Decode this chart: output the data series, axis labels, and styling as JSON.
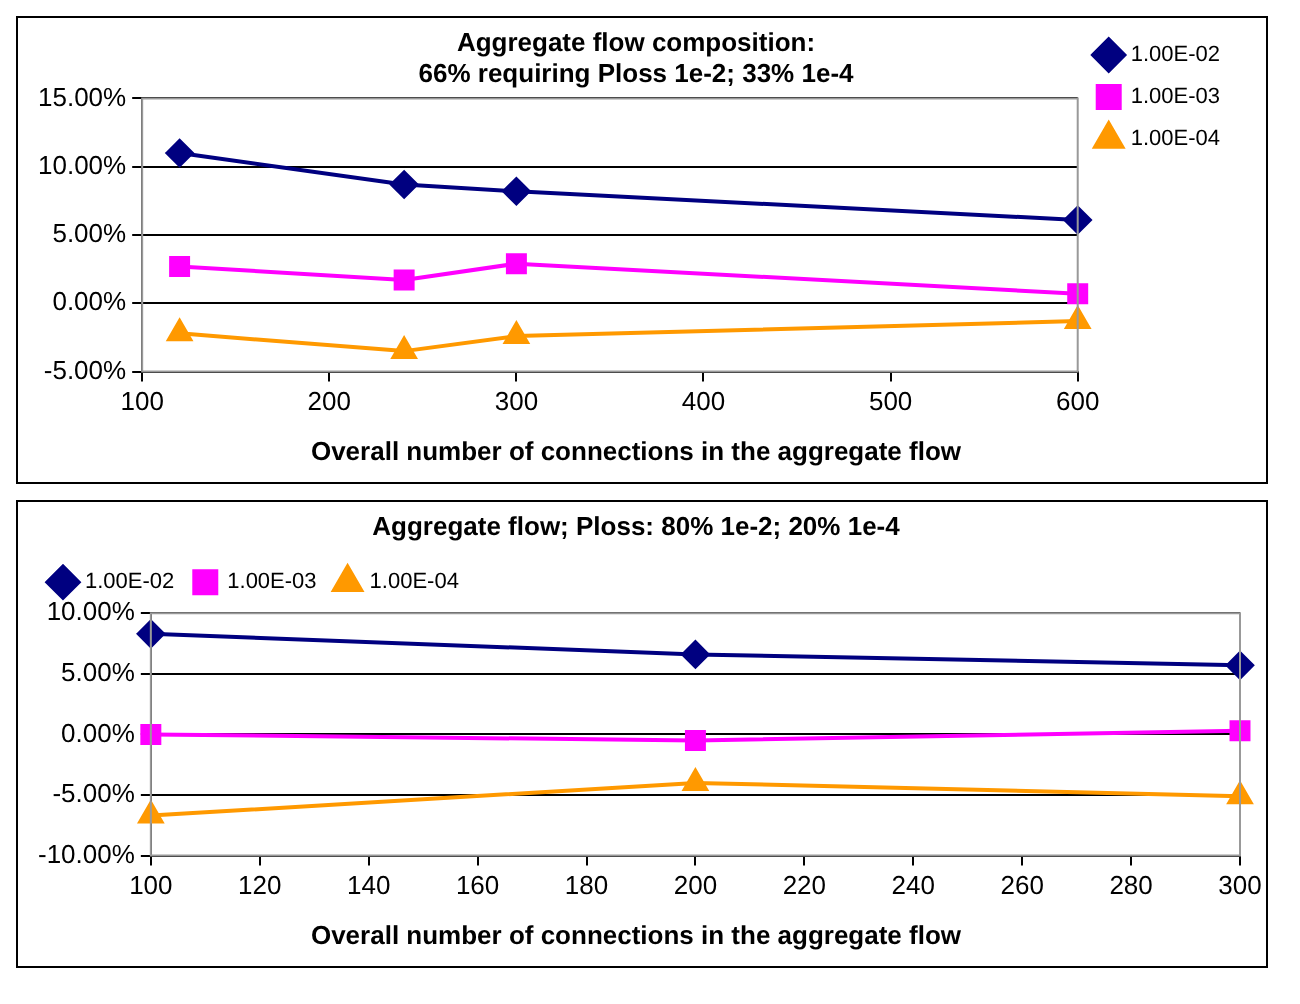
{
  "chart_data": [
    {
      "type": "line",
      "title": [
        "Aggregate flow composition:",
        "66% requiring Ploss 1e-2; 33% 1e-4"
      ],
      "xlabel": "Overall number of connections in the aggregate flow",
      "x": [
        120,
        240,
        300,
        600
      ],
      "series": [
        {
          "name": "1.00E-02",
          "color": "#000080",
          "marker": "diamond",
          "values": [
            11.0,
            8.7,
            8.2,
            6.1
          ]
        },
        {
          "name": "1.00E-03",
          "color": "#ff00ff",
          "marker": "square",
          "values": [
            2.7,
            1.7,
            2.9,
            0.7
          ]
        },
        {
          "name": "1.00E-04",
          "color": "#ff9900",
          "marker": "triangle",
          "values": [
            -2.2,
            -3.5,
            -2.4,
            -1.3
          ]
        }
      ],
      "xlim": [
        100,
        600
      ],
      "xticks": [
        100,
        200,
        300,
        400,
        500,
        600
      ],
      "ylim": [
        -5,
        15
      ],
      "yticks": [
        {
          "value": -5,
          "label": "-5.00%"
        },
        {
          "value": 0,
          "label": "0.00%"
        },
        {
          "value": 5,
          "label": "5.00%"
        },
        {
          "value": 10,
          "label": "10.00%"
        },
        {
          "value": 15,
          "label": "15.00%"
        }
      ],
      "grid": "y",
      "legend": "top right",
      "line_style": "solid"
    },
    {
      "type": "line",
      "title": "Aggregate flow; Ploss: 80% 1e-2; 20% 1e-4",
      "xlabel": "Overall number of connections in the aggregate flow",
      "x": [
        100,
        200,
        300
      ],
      "series": [
        {
          "name": "1.00E-02",
          "color": "#000080",
          "marker": "diamond",
          "values": [
            8.3,
            6.6,
            5.7
          ]
        },
        {
          "name": "1.00E-03",
          "color": "#ff00ff",
          "marker": "square",
          "values": [
            0.0,
            -0.5,
            0.3
          ]
        },
        {
          "name": "1.00E-04",
          "color": "#ff9900",
          "marker": "triangle",
          "values": [
            -6.7,
            -4.0,
            -5.1
          ]
        }
      ],
      "xlim": [
        100,
        300
      ],
      "xticks": [
        100,
        120,
        140,
        160,
        180,
        200,
        220,
        240,
        260,
        280,
        300
      ],
      "ylim": [
        -10,
        10
      ],
      "yticks": [
        {
          "value": -10,
          "label": "-10.00%"
        },
        {
          "value": -5,
          "label": "-5.00%"
        },
        {
          "value": 0,
          "label": "0.00%"
        },
        {
          "value": 5,
          "label": "5.00%"
        },
        {
          "value": 10,
          "label": "10.00%"
        }
      ],
      "grid": "y",
      "legend": "top left",
      "line_style": "solid"
    }
  ]
}
